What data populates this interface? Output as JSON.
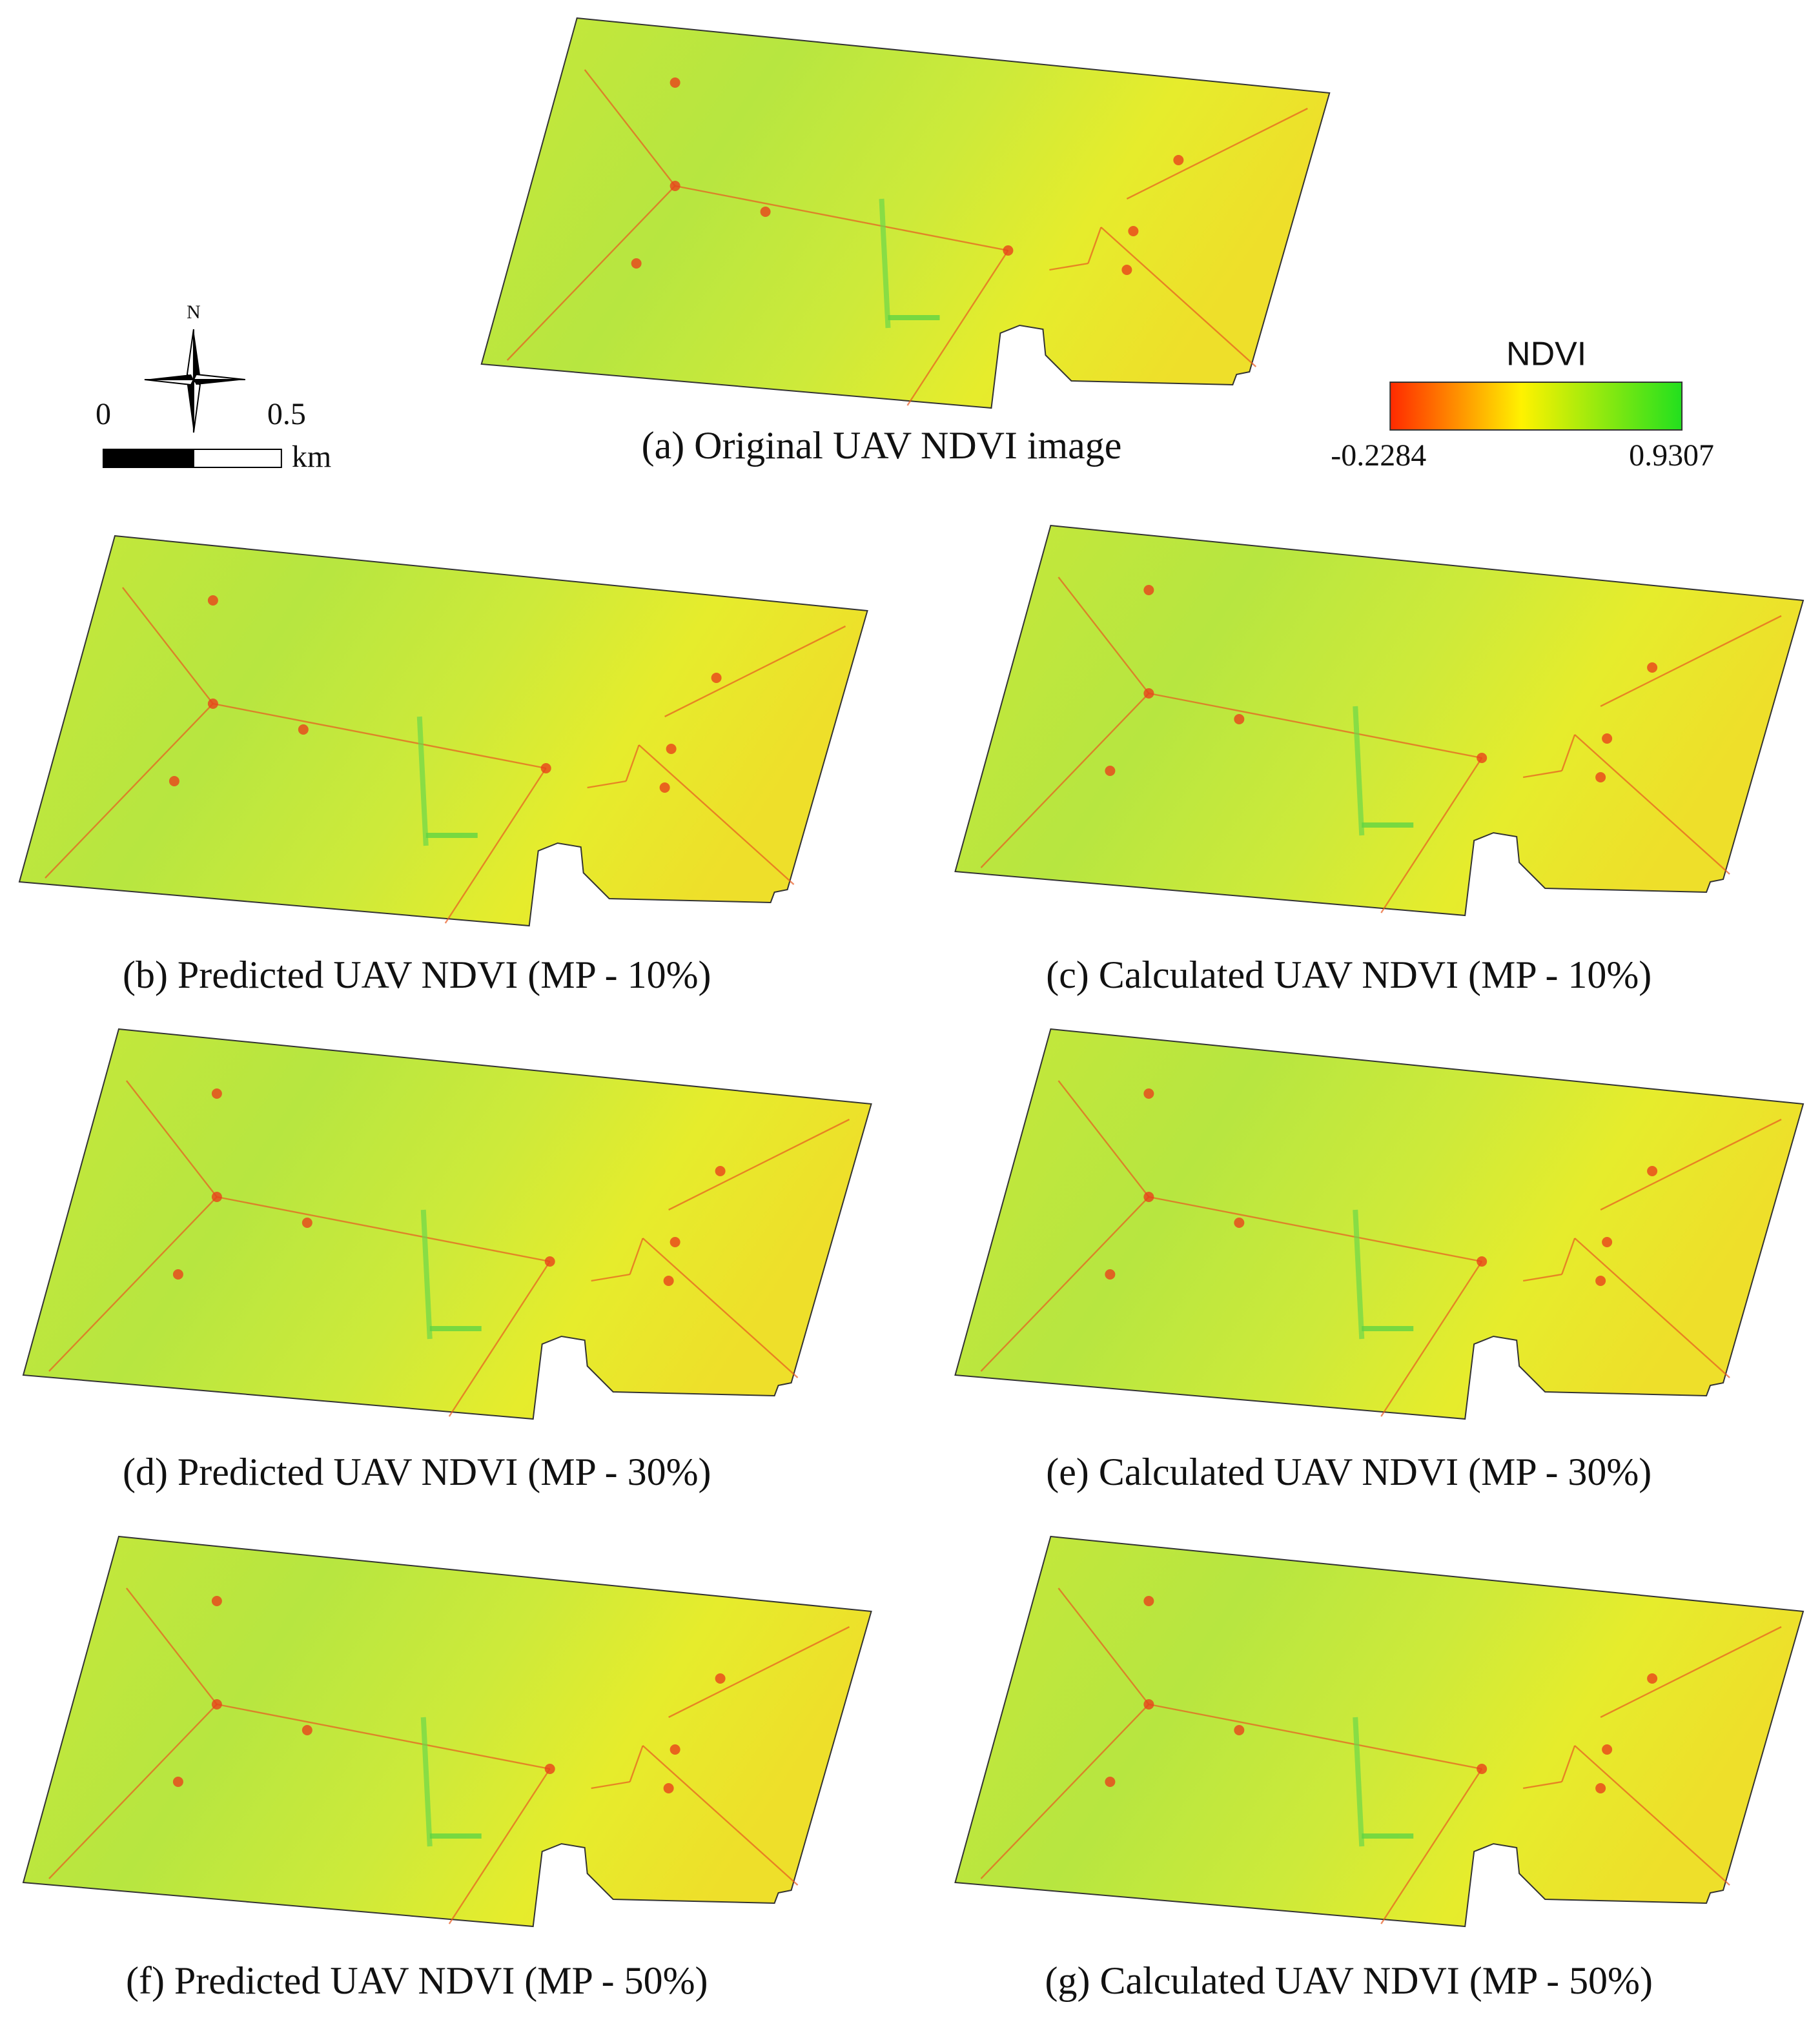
{
  "panels": [
    {
      "caption": "(a) Original UAV NDVI image"
    },
    {
      "caption": "(b) Predicted UAV NDVI (MP - 10%)"
    },
    {
      "caption": "(c) Calculated UAV NDVI (MP - 10%)"
    },
    {
      "caption": "(d) Predicted UAV NDVI (MP - 30%)"
    },
    {
      "caption": "(e) Calculated UAV NDVI (MP - 30%)"
    },
    {
      "caption": "(f) Predicted UAV NDVI (MP - 50%)"
    },
    {
      "caption": "(g) Calculated UAV NDVI (MP - 50%)"
    }
  ],
  "legend": {
    "title": "NDVI",
    "min": "-0.2284",
    "max": "0.9307"
  },
  "scale_bar": {
    "start": "0",
    "end": "0.5",
    "unit": "km"
  },
  "north_arrow": {
    "label": "N"
  }
}
